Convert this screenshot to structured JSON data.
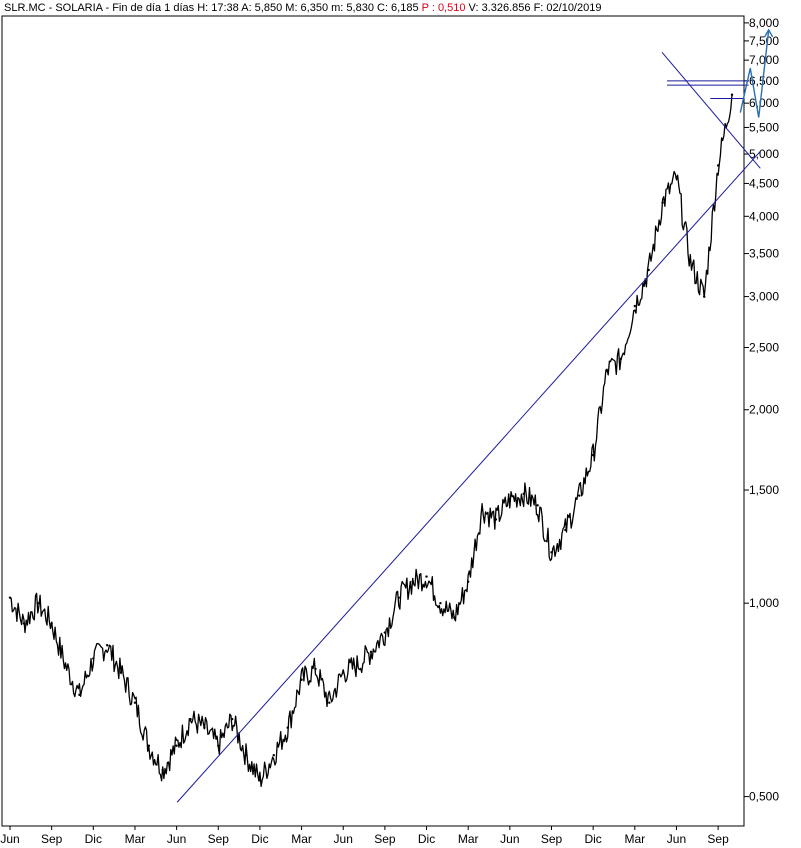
{
  "header": {
    "symbol": "SLR.MC - SOLARIA - Fin de día 1 días",
    "high": "H: 17:38",
    "open": "A: 5,850",
    "max": "M: 6,350",
    "min": "m: 5,830",
    "close": "C: 6,185",
    "change": "P : 0,510",
    "volume": "V: 3.326.856",
    "date": "F: 02/10/2019"
  },
  "colors": {
    "price": "#000000",
    "trendlines": "#1a1a9c",
    "projection": "#2a6fb5",
    "change_text": "#e0001b"
  },
  "chart_data": {
    "type": "line",
    "title": "",
    "xlabel": "",
    "ylabel": "",
    "y_scale": "log",
    "ylim": [
      0.45,
      8.2
    ],
    "y_ticks": [
      0.5,
      1.0,
      1.5,
      2.0,
      2.5,
      3.0,
      3.5,
      4.0,
      4.5,
      5.0,
      5.5,
      6.0,
      6.5,
      7.0,
      7.5,
      8.0
    ],
    "y_tick_labels": [
      "0,500",
      "1,000",
      "1,500",
      "2,000",
      "2,500",
      "3,000",
      "3,500",
      "4,000",
      "4,500",
      "5,000",
      "5,500",
      "6,000",
      "6,500",
      "7,000",
      "7,500",
      "8,000"
    ],
    "x_tick_labels": [
      "Jun",
      "Sep",
      "Dic",
      "Mar",
      "Jun",
      "Sep",
      "Dic",
      "Mar",
      "Jun",
      "Sep",
      "Dic",
      "Mar",
      "Jun",
      "Sep",
      "Dic",
      "Mar",
      "Jun",
      "Sep"
    ],
    "x_start": "2015-06",
    "x_end": "2019-10",
    "grid": false,
    "legend": "none",
    "series": [
      {
        "values": [
          [
            "2015-06",
            1.02
          ],
          [
            "2015-07",
            0.93
          ],
          [
            "2015-08",
            1.0
          ],
          [
            "2015-09",
            0.93
          ],
          [
            "2015-10",
            0.8
          ],
          [
            "2015-11",
            0.72
          ],
          [
            "2015-12",
            0.82
          ],
          [
            "2016-01",
            0.86
          ],
          [
            "2016-02",
            0.78
          ],
          [
            "2016-03",
            0.7
          ],
          [
            "2016-04",
            0.6
          ],
          [
            "2016-05",
            0.55
          ],
          [
            "2016-06",
            0.6
          ],
          [
            "2016-07",
            0.66
          ],
          [
            "2016-08",
            0.64
          ],
          [
            "2016-09",
            0.6
          ],
          [
            "2016-10",
            0.66
          ],
          [
            "2016-11",
            0.58
          ],
          [
            "2016-12",
            0.53
          ],
          [
            "2017-01",
            0.58
          ],
          [
            "2017-02",
            0.64
          ],
          [
            "2017-03",
            0.76
          ],
          [
            "2017-04",
            0.79
          ],
          [
            "2017-05",
            0.7
          ],
          [
            "2017-06",
            0.78
          ],
          [
            "2017-07",
            0.8
          ],
          [
            "2017-08",
            0.84
          ],
          [
            "2017-09",
            0.9
          ],
          [
            "2017-10",
            1.02
          ],
          [
            "2017-11",
            1.08
          ],
          [
            "2017-12",
            1.1
          ],
          [
            "2018-01",
            1.0
          ],
          [
            "2018-02",
            0.95
          ],
          [
            "2018-03",
            1.08
          ],
          [
            "2018-04",
            1.4
          ],
          [
            "2018-05",
            1.35
          ],
          [
            "2018-06",
            1.45
          ],
          [
            "2018-07",
            1.48
          ],
          [
            "2018-08",
            1.42
          ],
          [
            "2018-09",
            1.2
          ],
          [
            "2018-10",
            1.3
          ],
          [
            "2018-11",
            1.47
          ],
          [
            "2018-12",
            1.7
          ],
          [
            "2019-01",
            2.3
          ],
          [
            "2019-02",
            2.4
          ],
          [
            "2019-03",
            2.9
          ],
          [
            "2019-04",
            3.3
          ],
          [
            "2019-05",
            4.2
          ],
          [
            "2019-06",
            4.6
          ],
          [
            "2019-07",
            3.4
          ],
          [
            "2019-08",
            3.0
          ],
          [
            "2019-09",
            4.8
          ],
          [
            "2019-10",
            6.185
          ]
        ]
      }
    ]
  }
}
